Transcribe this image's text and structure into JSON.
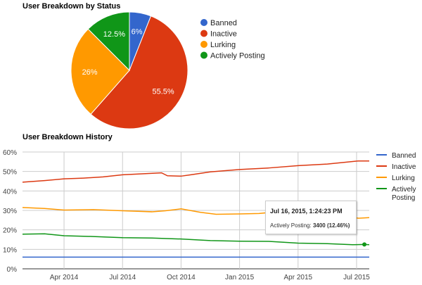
{
  "chart_data": [
    {
      "type": "pie",
      "title": "User Breakdown by Status",
      "legend": "right",
      "slices": [
        {
          "label": "Banned",
          "value": 6,
          "display": "6%",
          "color": "#3366cc"
        },
        {
          "label": "Inactive",
          "value": 55.5,
          "display": "55.5%",
          "color": "#dc3912"
        },
        {
          "label": "Lurking",
          "value": 26,
          "display": "26%",
          "color": "#ff9900"
        },
        {
          "label": "Actively Posting",
          "value": 12.5,
          "display": "12.5%",
          "color": "#109618"
        }
      ]
    },
    {
      "type": "line",
      "title": "User Breakdown History",
      "legend": "right",
      "ylim": [
        0,
        60
      ],
      "yticks": [
        "0%",
        "10%",
        "20%",
        "30%",
        "40%",
        "50%",
        "60%"
      ],
      "xticks": [
        {
          "month": 3,
          "label": "Apr 2014"
        },
        {
          "month": 6,
          "label": "Jul 2014"
        },
        {
          "month": 9,
          "label": "Oct 2014"
        },
        {
          "month": 12,
          "label": "Jan 2015"
        },
        {
          "month": 15,
          "label": "Apr 2015"
        },
        {
          "month": 18,
          "label": "Jul 2015"
        }
      ],
      "xrange_months_since_jan2014": [
        0.87,
        18.65
      ],
      "series": [
        {
          "name": "Banned",
          "color": "#3366cc",
          "points": [
            [
              0.87,
              6
            ],
            [
              18.65,
              6
            ]
          ]
        },
        {
          "name": "Inactive",
          "color": "#dc3912",
          "points": [
            [
              0.87,
              44.5
            ],
            [
              2,
              45.3
            ],
            [
              3,
              46.2
            ],
            [
              4,
              46.6
            ],
            [
              5,
              47.2
            ],
            [
              6,
              48.3
            ],
            [
              7,
              48.8
            ],
            [
              8,
              49.3
            ],
            [
              8.3,
              47.8
            ],
            [
              9,
              47.6
            ],
            [
              9.5,
              48.3
            ],
            [
              10.5,
              49.8
            ],
            [
              12,
              51
            ],
            [
              13.5,
              51.8
            ],
            [
              15,
              53
            ],
            [
              16.5,
              53.8
            ],
            [
              18.1,
              55.4
            ],
            [
              18.65,
              55.4
            ]
          ]
        },
        {
          "name": "Lurking",
          "color": "#ff9900",
          "points": [
            [
              0.87,
              31.5
            ],
            [
              2,
              31
            ],
            [
              3,
              30.2
            ],
            [
              4.5,
              30.4
            ],
            [
              6,
              29.8
            ],
            [
              7.5,
              29.3
            ],
            [
              8.2,
              29.8
            ],
            [
              9,
              30.8
            ],
            [
              10,
              29
            ],
            [
              10.8,
              28
            ],
            [
              12,
              28.2
            ],
            [
              13,
              28.4
            ],
            [
              13.8,
              29.2
            ],
            [
              15,
              27.5
            ],
            [
              16.5,
              27.5
            ],
            [
              17.6,
              26.6
            ],
            [
              18.1,
              26
            ],
            [
              18.65,
              26.3
            ]
          ]
        },
        {
          "name": "Actively Posting",
          "color": "#109618",
          "points": [
            [
              0.87,
              17.8
            ],
            [
              2,
              18
            ],
            [
              3,
              17
            ],
            [
              4.5,
              16.6
            ],
            [
              6,
              16
            ],
            [
              7.5,
              15.8
            ],
            [
              9,
              15.3
            ],
            [
              10.5,
              14.5
            ],
            [
              12,
              14.2
            ],
            [
              13.5,
              14.1
            ],
            [
              15,
              13.2
            ],
            [
              16.5,
              12.9
            ],
            [
              17.8,
              12.4
            ],
            [
              18.4,
              12.5
            ],
            [
              18.65,
              12.4
            ]
          ]
        }
      ],
      "tooltip": {
        "title": "Jul 16, 2015, 1:24:23 PM",
        "label": "Actively Posting:",
        "value": "3400 (12.46%)"
      },
      "legend_labels": [
        "Banned",
        "Inactive",
        "Lurking",
        "Actively",
        "Posting"
      ]
    }
  ]
}
